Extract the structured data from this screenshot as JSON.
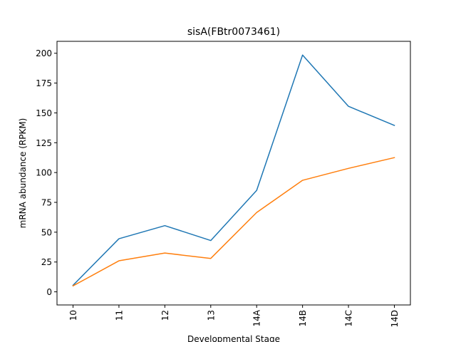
{
  "chart_data": {
    "type": "line",
    "title": "sisA(FBtr0073461)",
    "xlabel": "Developmental Stage",
    "ylabel": "mRNA abundance (RPKM)",
    "categories": [
      "10",
      "11",
      "12",
      "13",
      "14A",
      "14B",
      "14C",
      "14D"
    ],
    "ylim": [
      -11,
      210
    ],
    "yticks": [
      0,
      25,
      50,
      75,
      100,
      125,
      150,
      175,
      200
    ],
    "grid": false,
    "series": [
      {
        "color": "#1f77b4",
        "values": [
          5.5,
          44.5,
          55.5,
          43,
          85,
          198.5,
          155.5,
          139.5
        ]
      },
      {
        "color": "#ff7f0e",
        "values": [
          5,
          26,
          32.5,
          28,
          66.5,
          93.5,
          103.5,
          112.5
        ]
      }
    ]
  }
}
